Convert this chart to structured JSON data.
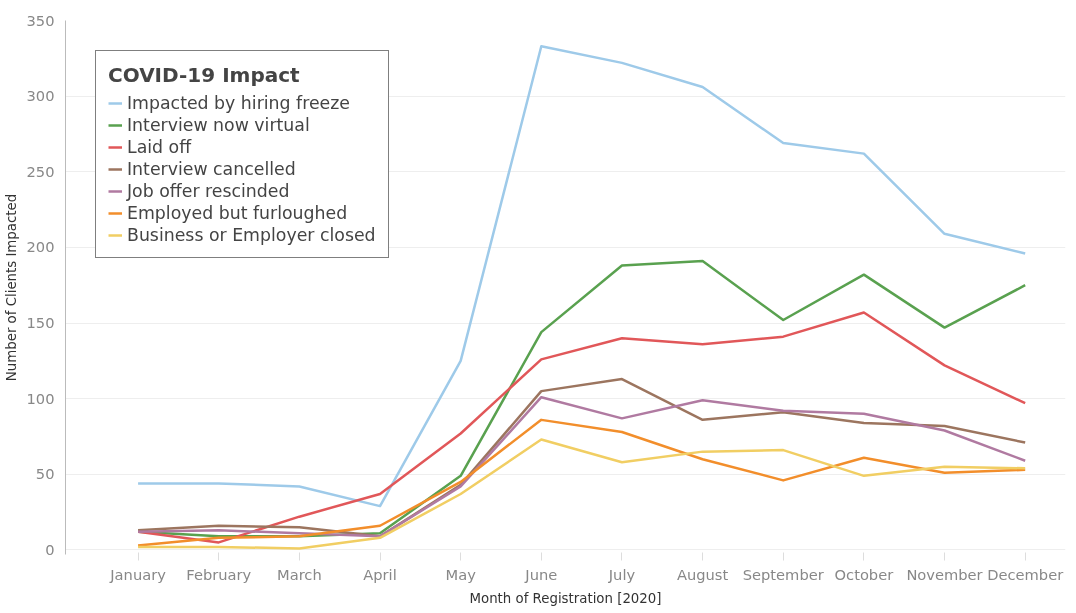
{
  "chart_data": {
    "type": "line",
    "xlabel": "Month of Registration [2020]",
    "ylabel": "Number of Clients Impacted",
    "legend_title": "COVID-19 Impact",
    "categories": [
      "January",
      "February",
      "March",
      "April",
      "May",
      "June",
      "July",
      "August",
      "September",
      "October",
      "November",
      "December"
    ],
    "ylim": [
      -3,
      350
    ],
    "yticks": [
      0,
      50,
      100,
      150,
      200,
      250,
      300,
      350
    ],
    "grid": "y",
    "legend": "top left",
    "line_style": "solid",
    "series": [
      {
        "name": "Impacted by hiring freeze",
        "color": "#9ecae9",
        "values": [
          44,
          44,
          42,
          29,
          125,
          333,
          322,
          306,
          269,
          262,
          209,
          196
        ]
      },
      {
        "name": "Interview now virtual",
        "color": "#59a14f",
        "values": [
          12,
          9,
          9,
          11,
          49,
          144,
          188,
          191,
          152,
          182,
          147,
          175
        ]
      },
      {
        "name": "Laid off",
        "color": "#e15759",
        "values": [
          12,
          5,
          22,
          37,
          77,
          126,
          140,
          136,
          141,
          157,
          122,
          97
        ]
      },
      {
        "name": "Interview cancelled",
        "color": "#9c755f",
        "values": [
          13,
          16,
          15,
          9,
          43,
          105,
          113,
          86,
          91,
          84,
          82,
          71
        ]
      },
      {
        "name": "Job offer rescinded",
        "color": "#b07aa1",
        "values": [
          12,
          13,
          11,
          9,
          42,
          101,
          87,
          99,
          92,
          90,
          79,
          59
        ]
      },
      {
        "name": "Employed but furloughed",
        "color": "#f28e2b",
        "values": [
          3,
          8,
          9,
          16,
          45,
          86,
          78,
          60,
          46,
          61,
          51,
          53
        ]
      },
      {
        "name": "Business or Employer closed",
        "color": "#f1ce63",
        "values": [
          2,
          2,
          1,
          8,
          37,
          73,
          58,
          65,
          66,
          49,
          55,
          54
        ]
      }
    ]
  }
}
